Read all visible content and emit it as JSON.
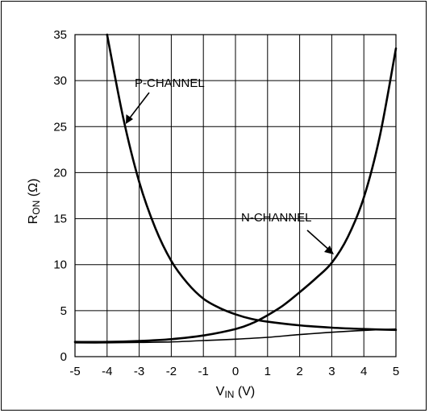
{
  "chart_data": {
    "type": "line",
    "title": "",
    "xlabel_main": "V",
    "xlabel_sub": "IN",
    "xlabel_unit": " (V)",
    "ylabel_main": "R",
    "ylabel_sub": "ON",
    "ylabel_unit": " (Ω)",
    "xlim": [
      -5,
      5
    ],
    "ylim": [
      0,
      35
    ],
    "xticks": [
      "-5",
      "-4",
      "-3",
      "-2",
      "-1",
      "0",
      "1",
      "2",
      "3",
      "4",
      "5"
    ],
    "yticks": [
      "0",
      "5",
      "10",
      "15",
      "20",
      "25",
      "30",
      "35"
    ],
    "grid": true,
    "series": [
      {
        "name": "P-CHANNEL",
        "x": [
          -4.0,
          -3.5,
          -3.0,
          -2.5,
          -2.0,
          -1.5,
          -1.0,
          -0.5,
          0.0,
          0.5,
          1.0,
          2.0,
          3.0,
          4.0,
          5.0
        ],
        "y": [
          35.0,
          26.0,
          19.0,
          14.0,
          10.4,
          8.0,
          6.3,
          5.3,
          4.6,
          4.1,
          3.8,
          3.4,
          3.15,
          3.0,
          2.9
        ]
      },
      {
        "name": "N-CHANNEL",
        "x": [
          -5.0,
          -4.0,
          -3.0,
          -2.0,
          -1.0,
          0.0,
          0.5,
          1.0,
          1.5,
          2.0,
          2.5,
          3.0,
          3.5,
          4.0,
          4.5,
          5.0
        ],
        "y": [
          1.6,
          1.6,
          1.7,
          1.9,
          2.3,
          3.0,
          3.6,
          4.5,
          5.6,
          7.0,
          8.5,
          10.2,
          13.0,
          17.3,
          24.0,
          33.5
        ]
      },
      {
        "name": "",
        "x": [
          -5.0,
          -4.0,
          -3.0,
          -2.0,
          -1.0,
          0.0,
          1.0,
          2.0,
          3.0,
          4.0,
          5.0
        ],
        "y": [
          1.5,
          1.5,
          1.55,
          1.6,
          1.75,
          1.9,
          2.1,
          2.4,
          2.65,
          2.85,
          3.0
        ]
      }
    ],
    "annotations": [
      {
        "text": "P-CHANNEL",
        "target_series": "P-CHANNEL"
      },
      {
        "text": "N-CHANNEL",
        "target_series": "N-CHANNEL"
      }
    ]
  }
}
